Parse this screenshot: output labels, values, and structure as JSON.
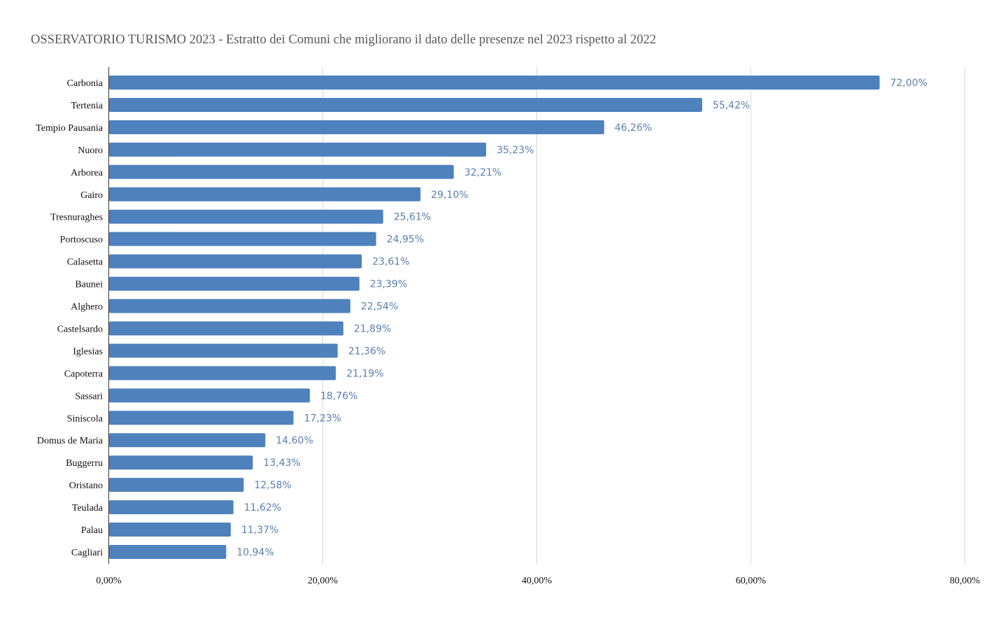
{
  "chart_data": {
    "type": "bar",
    "orientation": "horizontal",
    "title": "OSSERVATORIO TURISMO 2023 - Estratto dei Comuni che migliorano il dato delle presenze nel 2023 rispetto al 2022",
    "xlabel": "",
    "ylabel": "",
    "xlim": [
      0,
      80
    ],
    "grid": true,
    "legend": "none",
    "bar_color": "#4f81bd",
    "label_color": "#5a7faf",
    "categories": [
      "Carbonia",
      "Tertenia",
      "Tempio Pausania",
      "Nuoro",
      "Arborea",
      "Gairo",
      "Tresnuraghes",
      "Portoscuso",
      "Calasetta",
      "Baunei",
      "Alghero",
      "Castelsardo",
      "Iglesias",
      "Capoterra",
      "Sassari",
      "Siniscola",
      "Domus de Maria",
      "Buggerru",
      "Oristano",
      "Teulada",
      "Palau",
      "Cagliari"
    ],
    "values": [
      72.0,
      55.42,
      46.26,
      35.23,
      32.21,
      29.1,
      25.61,
      24.95,
      23.61,
      23.39,
      22.54,
      21.89,
      21.36,
      21.19,
      18.76,
      17.23,
      14.6,
      13.43,
      12.58,
      11.62,
      11.37,
      10.94
    ],
    "value_labels": [
      "72,00%",
      "55,42%",
      "46,26%",
      "35,23%",
      "32,21%",
      "29,10%",
      "25,61%",
      "24,95%",
      "23,61%",
      "23,39%",
      "22,54%",
      "21,89%",
      "21,36%",
      "21,19%",
      "18,76%",
      "17,23%",
      "14,60%",
      "13,43%",
      "12,58%",
      "11,62%",
      "11,37%",
      "10,94%"
    ],
    "ticks": [
      0,
      20,
      40,
      60,
      80
    ],
    "tick_labels": [
      "0,00%",
      "20,00%",
      "40,00%",
      "60,00%",
      "80,00%"
    ]
  }
}
